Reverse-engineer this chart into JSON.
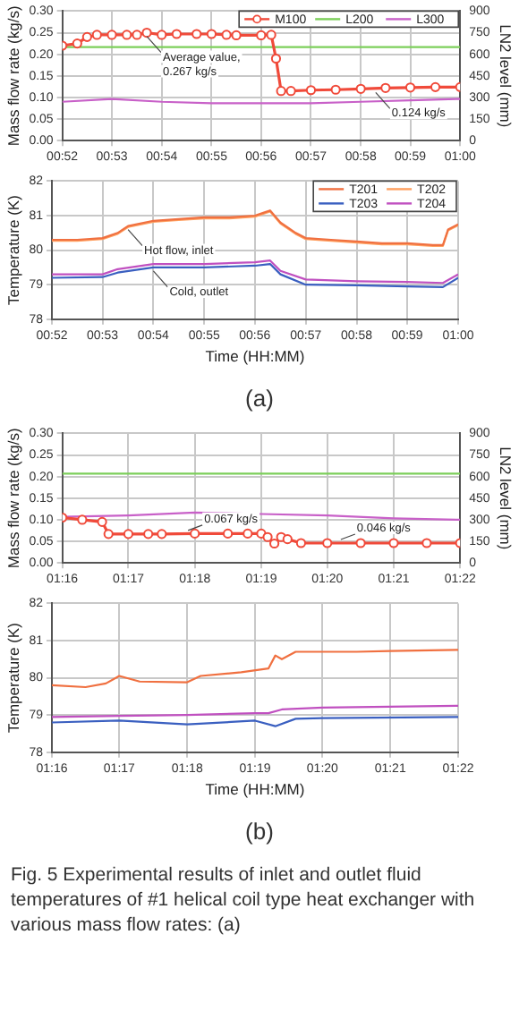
{
  "chart_data": [
    {
      "type": "line",
      "ylabel": "Mass flow rate (kg/s)",
      "y2label": "LN2 level (mm)",
      "grid": true,
      "legend": "top right",
      "xlim": [
        0.8667,
        1.0
      ],
      "xticks": [
        {
          "value": 0.8667,
          "label": "00:52"
        },
        {
          "value": 0.8833,
          "label": "00:53"
        },
        {
          "value": 0.9,
          "label": "00:54"
        },
        {
          "value": 0.9167,
          "label": "00:55"
        },
        {
          "value": 0.9333,
          "label": "00:56"
        },
        {
          "value": 0.95,
          "label": "00:57"
        },
        {
          "value": 0.9667,
          "label": "00:58"
        },
        {
          "value": 0.9833,
          "label": "00:59"
        },
        {
          "value": 1.0,
          "label": "01:00"
        }
      ],
      "ylim": [
        0,
        0.3
      ],
      "yticks": [
        {
          "value": 0,
          "label": "0.00"
        },
        0.05,
        {
          "value": 0.1,
          "label": "0.10"
        },
        0.15,
        {
          "value": 0.2,
          "label": "0.20"
        },
        0.25,
        {
          "value": 0.3,
          "label": "0.30"
        }
      ],
      "y2lim": [
        0,
        900
      ],
      "y2ticks": [
        0,
        150,
        300,
        450,
        600,
        750,
        900
      ],
      "series": [
        {
          "name": "M100",
          "color": "#f04a3a",
          "marker": "circle",
          "x": [
            0.8667,
            0.8717,
            0.875,
            0.8783,
            0.8833,
            0.8883,
            0.8917,
            0.895,
            0.9,
            0.905,
            0.9117,
            0.9167,
            0.9217,
            0.925,
            0.9333,
            0.9367,
            0.9383,
            0.94,
            0.9433,
            0.95,
            0.9583,
            0.9667,
            0.975,
            0.9833,
            0.9917,
            1.0
          ],
          "values": [
            0.22,
            0.225,
            0.24,
            0.245,
            0.245,
            0.245,
            0.245,
            0.25,
            0.245,
            0.247,
            0.247,
            0.247,
            0.245,
            0.244,
            0.244,
            0.245,
            0.19,
            0.115,
            0.115,
            0.117,
            0.118,
            0.12,
            0.122,
            0.123,
            0.124,
            0.124
          ]
        },
        {
          "name": "L200",
          "color": "#7ccf5a",
          "marker": "none",
          "axis": "y2",
          "x": [
            0.8667,
            1.0
          ],
          "values": [
            650,
            650
          ]
        },
        {
          "name": "L300",
          "color": "#c860c8",
          "marker": "none",
          "axis": "y2",
          "x": [
            0.8667,
            0.8833,
            0.9,
            0.9167,
            0.9333,
            0.95,
            0.9667,
            0.9833,
            1.0
          ],
          "values": [
            270,
            290,
            270,
            260,
            260,
            260,
            270,
            280,
            290
          ]
        }
      ],
      "annotations": [
        {
          "text": "Average value, 0.267 kg/s",
          "x": 0.895,
          "y": 0.25
        },
        {
          "text": "0.124 kg/s",
          "x": 0.9717,
          "y": 0.12
        }
      ]
    },
    {
      "type": "line",
      "xlabel": "Time (HH:MM)",
      "ylabel": "Temperature (K)",
      "grid": true,
      "legend": "top right",
      "xlim": [
        0.8667,
        1.0
      ],
      "xticks": [
        {
          "value": 0.8667,
          "label": "00:52"
        },
        {
          "value": 0.8833,
          "label": "00:53"
        },
        {
          "value": 0.9,
          "label": "00:54"
        },
        {
          "value": 0.9167,
          "label": "00:55"
        },
        {
          "value": 0.9333,
          "label": "00:56"
        },
        {
          "value": 0.95,
          "label": "00:57"
        },
        {
          "value": 0.9667,
          "label": "00:58"
        },
        {
          "value": 0.9833,
          "label": "00:59"
        },
        {
          "value": 1.0,
          "label": "01:00"
        }
      ],
      "ylim": [
        78,
        82
      ],
      "yticks": [
        78,
        79,
        80,
        81,
        82
      ],
      "series": [
        {
          "name": "T201",
          "color": "#f07040",
          "x": [
            0.8667,
            0.875,
            0.8833,
            0.8883,
            0.8917,
            0.9,
            0.9083,
            0.9167,
            0.925,
            0.9333,
            0.9367,
            0.9383,
            0.9417,
            0.9467,
            0.95,
            0.9583,
            0.9667,
            0.975,
            0.9833,
            0.9917,
            0.995,
            0.9967,
            1.0
          ],
          "values": [
            80.3,
            80.3,
            80.35,
            80.5,
            80.7,
            80.85,
            80.9,
            80.95,
            80.95,
            81.0,
            81.1,
            81.15,
            80.8,
            80.5,
            80.35,
            80.3,
            80.25,
            80.2,
            80.2,
            80.15,
            80.15,
            80.6,
            80.75
          ]
        },
        {
          "name": "T202",
          "color": "#ffa060",
          "x": [
            0.8667,
            0.875,
            0.8833,
            0.8883,
            0.8917,
            0.9,
            0.9083,
            0.9167,
            0.925,
            0.9333,
            0.9367,
            0.9383,
            0.9417,
            0.9467,
            0.95,
            0.9583,
            0.9667,
            0.975,
            0.9833,
            0.9917,
            0.995,
            0.9967,
            1.0
          ],
          "values": [
            80.27,
            80.27,
            80.32,
            80.47,
            80.67,
            80.82,
            80.87,
            80.92,
            80.92,
            80.97,
            81.07,
            81.12,
            80.77,
            80.47,
            80.32,
            80.27,
            80.22,
            80.17,
            80.17,
            80.12,
            80.12,
            80.57,
            80.72
          ]
        },
        {
          "name": "T203",
          "color": "#3a5fc0",
          "x": [
            0.8667,
            0.8833,
            0.8883,
            0.9,
            0.9167,
            0.9333,
            0.9383,
            0.9417,
            0.95,
            0.9667,
            0.9833,
            0.995,
            1.0
          ],
          "values": [
            79.2,
            79.22,
            79.35,
            79.5,
            79.5,
            79.55,
            79.6,
            79.3,
            79.0,
            78.98,
            78.95,
            78.93,
            79.2
          ]
        },
        {
          "name": "T204",
          "color": "#c050c0",
          "x": [
            0.8667,
            0.8833,
            0.8883,
            0.9,
            0.9167,
            0.9333,
            0.9383,
            0.9417,
            0.95,
            0.9667,
            0.9833,
            0.995,
            1.0
          ],
          "values": [
            79.3,
            79.3,
            79.45,
            79.6,
            79.6,
            79.65,
            79.7,
            79.4,
            79.15,
            79.1,
            79.08,
            79.05,
            79.3
          ]
        }
      ],
      "annotations": [
        {
          "text": "Hot flow, inlet",
          "x": 0.8917,
          "y": 80.7
        },
        {
          "text": "Cold, outlet",
          "x": 0.9,
          "y": 79.5
        },
        "(a)"
      ]
    },
    {
      "type": "line",
      "ylabel": "Mass flow rate (kg/s)",
      "y2label": "LN2 level (mm)",
      "grid": true,
      "xlim": [
        1.2667,
        1.3667
      ],
      "xticks": [
        {
          "value": 1.2667,
          "label": "01:16"
        },
        {
          "value": 1.2833,
          "label": "01:17"
        },
        {
          "value": 1.3,
          "label": "01:18"
        },
        {
          "value": 1.3167,
          "label": "01:19"
        },
        {
          "value": 1.3333,
          "label": "01:20"
        },
        {
          "value": 1.35,
          "label": "01:21"
        },
        {
          "value": 1.3667,
          "label": "01:22"
        }
      ],
      "ylim": [
        0,
        0.3
      ],
      "yticks": [
        {
          "value": 0,
          "label": "0.00"
        },
        0.05,
        {
          "value": 0.1,
          "label": "0.10"
        },
        0.15,
        {
          "value": 0.2,
          "label": "0.20"
        },
        0.25,
        {
          "value": 0.3,
          "label": "0.30"
        }
      ],
      "y2lim": [
        0,
        900
      ],
      "y2ticks": [
        0,
        150,
        300,
        450,
        600,
        750,
        900
      ],
      "series": [
        {
          "color": "#f04a3a",
          "marker": "circle",
          "x": [
            1.2667,
            1.2717,
            1.2767,
            1.2783,
            1.2833,
            1.2883,
            1.2917,
            1.3,
            1.3083,
            1.3133,
            1.3167,
            1.3183,
            1.32,
            1.3217,
            1.3233,
            1.3267,
            1.3333,
            1.3417,
            1.35,
            1.3583,
            1.3667
          ],
          "values": [
            0.105,
            0.1,
            0.095,
            0.067,
            0.067,
            0.067,
            0.067,
            0.068,
            0.068,
            0.068,
            0.068,
            0.06,
            0.045,
            0.06,
            0.055,
            0.046,
            0.046,
            0.046,
            0.046,
            0.046,
            0.046
          ]
        },
        {
          "color": "#7ccf5a",
          "marker": "none",
          "axis": "y2",
          "x": [
            1.2667,
            1.3667
          ],
          "values": [
            620,
            620
          ]
        },
        {
          "color": "#c860c8",
          "marker": "none",
          "axis": "y2",
          "x": [
            1.2667,
            1.2833,
            1.3,
            1.3167,
            1.3333,
            1.35,
            1.3667
          ],
          "values": [
            320,
            330,
            350,
            340,
            330,
            310,
            300
          ]
        }
      ],
      "annotations": [
        {
          "text": "0.067 kg/s",
          "x": 1.2983,
          "y": 0.067
        },
        {
          "text": "0.046 kg/s",
          "x": 1.3367,
          "y": 0.046
        }
      ]
    },
    {
      "type": "line",
      "xlabel": "Time (HH:MM)",
      "ylabel": "Temperature (K)",
      "grid": true,
      "xlim": [
        1.2667,
        1.3667
      ],
      "xticks": [
        {
          "value": 1.2667,
          "label": "01:16"
        },
        {
          "value": 1.2833,
          "label": "01:17"
        },
        {
          "value": 1.3,
          "label": "01:18"
        },
        {
          "value": 1.3167,
          "label": "01:19"
        },
        {
          "value": 1.3333,
          "label": "01:20"
        },
        {
          "value": 1.35,
          "label": "01:21"
        },
        {
          "value": 1.3667,
          "label": "01:22"
        }
      ],
      "ylim": [
        78,
        82
      ],
      "yticks": [
        78,
        79,
        80,
        81,
        82
      ],
      "series": [
        {
          "color": "#f07040",
          "x": [
            1.2667,
            1.275,
            1.28,
            1.2833,
            1.2883,
            1.3,
            1.3033,
            1.3133,
            1.32,
            1.3217,
            1.3233,
            1.3267,
            1.3417,
            1.35,
            1.3667
          ],
          "values": [
            79.8,
            79.75,
            79.85,
            80.05,
            79.9,
            79.88,
            80.05,
            80.15,
            80.25,
            80.6,
            80.5,
            80.7,
            80.7,
            80.72,
            80.75
          ]
        },
        {
          "color": "#3a5fc0",
          "x": [
            1.2667,
            1.2833,
            1.3,
            1.3167,
            1.3217,
            1.3267,
            1.3333,
            1.3667
          ],
          "values": [
            78.8,
            78.85,
            78.75,
            78.85,
            78.7,
            78.9,
            78.92,
            78.95
          ]
        },
        {
          "color": "#c050c0",
          "x": [
            1.2667,
            1.2833,
            1.3,
            1.3167,
            1.32,
            1.3233,
            1.3333,
            1.3667
          ],
          "values": [
            78.95,
            78.98,
            79.0,
            79.05,
            79.05,
            79.15,
            79.2,
            79.25
          ]
        }
      ],
      "annotations": [
        "(b)",
        "Fig. 5 Experimental results of inlet and outlet fluid temperatures of #1 helical coil type heat exchanger with various mass flow rates: (a)"
      ]
    }
  ]
}
